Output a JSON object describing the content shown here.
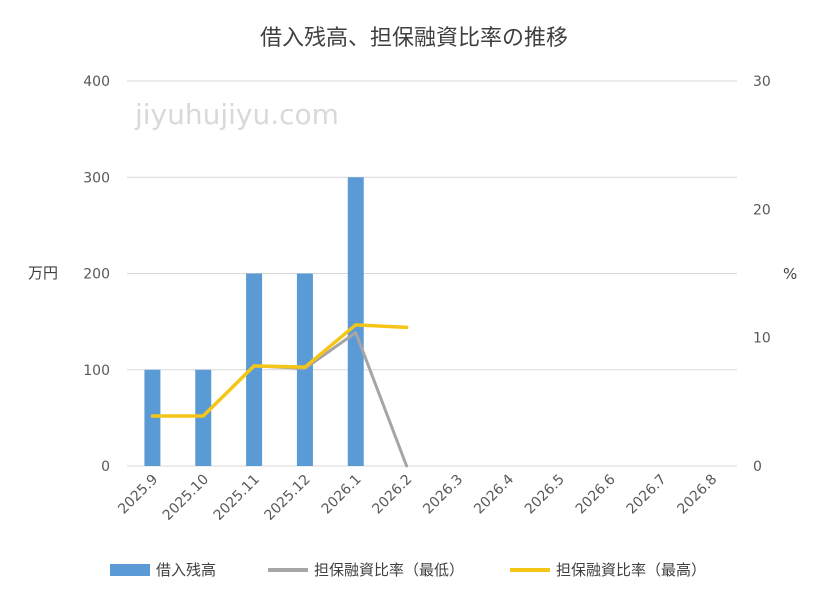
{
  "chart_data": {
    "type": "bar+line",
    "title": "借入残高、担保融資比率の推移",
    "watermark": "jiyuhujiyu.com",
    "categories": [
      "2025.9",
      "2025.10",
      "2025.11",
      "2025.12",
      "2026.1",
      "2026.2",
      "2026.3",
      "2026.4",
      "2026.5",
      "2026.6",
      "2026.7",
      "2026.8"
    ],
    "y_left": {
      "label": "万円",
      "min": 0,
      "max": 400,
      "ticks": [
        "0",
        "100",
        "200",
        "300",
        "400"
      ]
    },
    "y_right": {
      "label": "%",
      "min": 0,
      "max": 30,
      "ticks": [
        "0",
        "10",
        "20",
        "30"
      ]
    },
    "grid": true,
    "legend_position": "bottom",
    "series": [
      {
        "name": "借入残高",
        "kind": "bar",
        "axis": "left",
        "color": "#5b9bd5",
        "values": [
          100,
          100,
          200,
          200,
          300,
          null,
          null,
          null,
          null,
          null,
          null,
          null
        ]
      },
      {
        "name": "担保融資比率（最低）",
        "kind": "line",
        "axis": "right",
        "color": "#a5a5a5",
        "values": [
          3.9,
          3.9,
          7.8,
          7.6,
          10.4,
          0,
          null,
          null,
          null,
          null,
          null,
          null
        ]
      },
      {
        "name": "担保融資比率（最高）",
        "kind": "line",
        "axis": "right",
        "color": "#f5c518",
        "values": [
          3.9,
          3.9,
          7.8,
          7.7,
          11.0,
          10.8,
          null,
          null,
          null,
          null,
          null,
          null
        ]
      }
    ]
  }
}
